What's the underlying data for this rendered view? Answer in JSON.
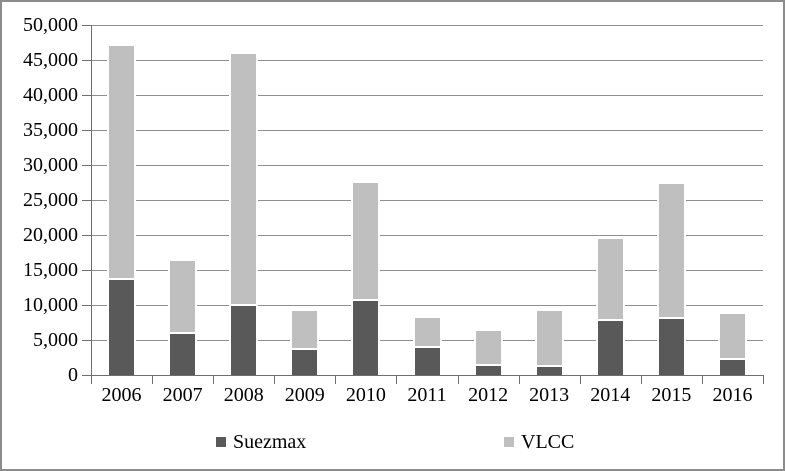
{
  "frame": {
    "background": "#ffffff",
    "border_color": "#8c8c8c",
    "gridline_color": "#8f8f8f",
    "axis_color": "#6e6e6e"
  },
  "chart_data": {
    "type": "bar",
    "stacked": true,
    "title": "",
    "xlabel": "",
    "ylabel": "",
    "categories": [
      "2006",
      "2007",
      "2008",
      "2009",
      "2010",
      "2011",
      "2012",
      "2013",
      "2014",
      "2015",
      "2016"
    ],
    "series": [
      {
        "name": "Suezmax",
        "color": "#595959",
        "values": [
          13600,
          5900,
          9800,
          3500,
          10600,
          3800,
          1300,
          1100,
          7700,
          8000,
          2100
        ]
      },
      {
        "name": "VLCC",
        "color": "#bfbfbf",
        "values": [
          33400,
          10400,
          36000,
          5600,
          16900,
          4400,
          5000,
          8100,
          11700,
          19300,
          6600
        ]
      }
    ],
    "totals": [
      47000,
      16300,
      45800,
      9100,
      27500,
      8200,
      6300,
      9200,
      19400,
      27300,
      8700
    ],
    "ylim": [
      0,
      50000
    ],
    "ytick_step": 5000,
    "ytick_labels": [
      "0",
      "5,000",
      "10,000",
      "15,000",
      "20,000",
      "25,000",
      "30,000",
      "35,000",
      "40,000",
      "45,000",
      "50,000"
    ],
    "grid": true,
    "legend_position": "bottom"
  }
}
